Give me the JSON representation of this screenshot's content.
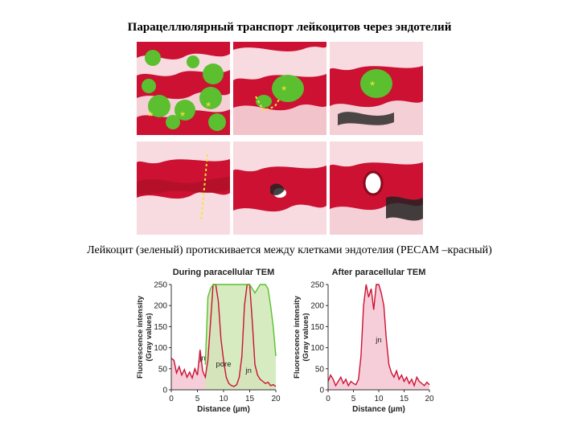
{
  "slide": {
    "title": "Парацеллюлярный транспорт лейкоцитов через эндотелий",
    "caption": "Лейкоцит (зеленый) протискивается между клетками эндотелия (PECAM –красный)"
  },
  "colors": {
    "red": "#cc1133",
    "pink": "#f4c6d2",
    "green": "#5bbf2f",
    "light_green": "#cfe7b5",
    "yellow": "#f2e53a",
    "dark": "#222222"
  },
  "micrographs": {
    "markers": [
      "*",
      "*",
      "*",
      "*",
      "*",
      "*"
    ]
  },
  "chart_data": [
    {
      "type": "line",
      "title": "During paracellular TEM",
      "xlabel": "Distance (µm)",
      "ylabel": "Fluorescence intensity\n(Gray values)",
      "xlim": [
        0,
        20
      ],
      "ylim": [
        0,
        250
      ],
      "xticks": [
        0,
        5,
        10,
        15,
        20
      ],
      "yticks": [
        0,
        50,
        100,
        150,
        200,
        250
      ],
      "annotations": [
        "jn",
        "pore",
        "jn"
      ],
      "series": [
        {
          "color": "#cc1133",
          "fill": "#f4c6d2",
          "x": [
            0,
            0.5,
            1,
            1.5,
            2,
            2.5,
            3,
            3.5,
            4,
            4.5,
            5,
            5.5,
            6,
            6.5,
            7,
            7.5,
            8,
            8.5,
            9,
            9.5,
            10,
            10.5,
            11,
            11.5,
            12,
            12.5,
            13,
            13.5,
            14,
            14.5,
            15,
            15.5,
            16,
            16.5,
            17,
            17.5,
            18,
            18.5,
            19,
            19.5,
            20
          ],
          "y": [
            75,
            70,
            40,
            55,
            35,
            48,
            30,
            42,
            28,
            50,
            35,
            95,
            45,
            30,
            70,
            160,
            250,
            250,
            210,
            120,
            70,
            30,
            15,
            10,
            8,
            12,
            30,
            80,
            200,
            250,
            250,
            160,
            60,
            35,
            25,
            20,
            15,
            18,
            10,
            12,
            8
          ]
        },
        {
          "color": "#5bbf2f",
          "fill": "#cfe7b5",
          "x": [
            6.5,
            7,
            7.5,
            8,
            9,
            10,
            11,
            12,
            13,
            14,
            15,
            15.5,
            16,
            17,
            18,
            18.5,
            19,
            19.5,
            20
          ],
          "y": [
            60,
            220,
            240,
            250,
            250,
            250,
            250,
            250,
            250,
            250,
            250,
            240,
            230,
            250,
            250,
            240,
            200,
            150,
            80
          ]
        }
      ]
    },
    {
      "type": "line",
      "title": "After paracellular TEM",
      "xlabel": "Distance (µm)",
      "ylabel": "Fluorescence intensity\n(Gray values)",
      "xlim": [
        0,
        20
      ],
      "ylim": [
        0,
        250
      ],
      "xticks": [
        0,
        5,
        10,
        15,
        20
      ],
      "yticks": [
        0,
        50,
        100,
        150,
        200,
        250
      ],
      "annotations": [
        "jn"
      ],
      "series": [
        {
          "color": "#cc1133",
          "fill": "#f4c6d2",
          "x": [
            0,
            0.5,
            1,
            1.5,
            2,
            2.5,
            3,
            3.5,
            4,
            4.5,
            5,
            5.5,
            6,
            6.5,
            7,
            7.5,
            8,
            8.5,
            9,
            9.5,
            10,
            10.5,
            11,
            11.5,
            12,
            12.5,
            13,
            13.5,
            14,
            14.5,
            15,
            15.5,
            16,
            16.5,
            17,
            17.5,
            18,
            18.5,
            19,
            19.5,
            20
          ],
          "y": [
            20,
            35,
            25,
            10,
            20,
            30,
            15,
            25,
            10,
            20,
            15,
            12,
            25,
            80,
            200,
            250,
            220,
            240,
            190,
            250,
            250,
            230,
            200,
            120,
            60,
            40,
            30,
            45,
            25,
            35,
            20,
            30,
            15,
            25,
            10,
            30,
            20,
            15,
            10,
            18,
            12
          ]
        }
      ]
    }
  ]
}
